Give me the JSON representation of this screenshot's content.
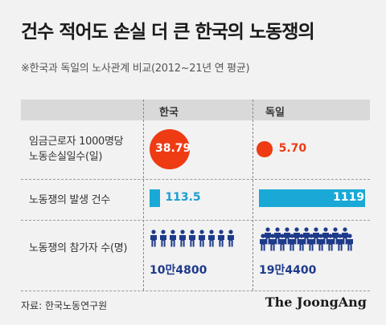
{
  "header": {
    "title": "건수 적어도 손실 더 큰 한국의 노동쟁의",
    "subtitle": "※한국과 독일의 노사관계 비교(2012~21년 연 평균)"
  },
  "columns": [
    "한국",
    "독일"
  ],
  "rows": {
    "days_lost_line1": "임금근로자 1000명당",
    "days_lost_line2": "노동손실일수(일)",
    "disputes": "노동쟁의 발생 건수",
    "participants": "노동쟁의 참가자 수(명)"
  },
  "values": {
    "korea_days": "38.79",
    "germany_days": "5.70",
    "korea_disputes": "113.5",
    "germany_disputes": "1119",
    "korea_participants": "10만4800",
    "germany_participants": "19만4400"
  },
  "footer": {
    "source": "자료: 한국노동연구원",
    "brand": "The JoongAng"
  },
  "colors": {
    "circle": "#ee3b14",
    "bar": "#1aa9d6",
    "person": "#1e3a8a"
  },
  "chart_data": {
    "type": "table",
    "title": "건수 적어도 손실 더 큰 한국의 노동쟁의",
    "subtitle": "※한국과 독일의 노사관계 비교(2012~21년 연 평균)",
    "categories": [
      "한국",
      "독일"
    ],
    "series": [
      {
        "name": "임금근로자 1000명당 노동손실일수(일)",
        "values": [
          38.79,
          5.7
        ],
        "display": "circle"
      },
      {
        "name": "노동쟁의 발생 건수",
        "values": [
          113.5,
          1119
        ],
        "display": "bar"
      },
      {
        "name": "노동쟁의 참가자 수(명)",
        "values": [
          104800,
          194400
        ],
        "display": "pictogram"
      }
    ]
  }
}
